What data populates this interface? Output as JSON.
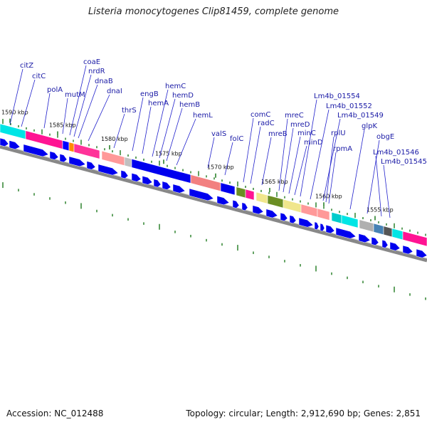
{
  "title": "Listeria monocytogenes Clip81459, complete genome",
  "footer": {
    "accession": "Accession: NC_012488",
    "topology": "Topology: circular; Length: 2,912,690 bp; Genes: 2,851"
  },
  "colors": {
    "backbone": "#888888",
    "cds_arrow": "#0000ee",
    "tick_green": "#1e7a1e",
    "label": "#1a1aa6",
    "leader": "#2222cc"
  },
  "kbp_markers": [
    "1590 kbp",
    "1585 kbp",
    "1580 kbp",
    "1575 kbp",
    "1570 kbp",
    "1565 kbp",
    "1560 kbp",
    "1555 kbp"
  ],
  "gene_labels": [
    "citZ",
    "citC",
    "polA",
    "mutM",
    "coaE",
    "nrdR",
    "dnaB",
    "dnaI",
    "thrS",
    "engB",
    "hemA",
    "hemC",
    "hemD",
    "hemB",
    "hemL",
    "valS",
    "folC",
    "comC",
    "radC",
    "mreB",
    "mreC",
    "mreD",
    "minC",
    "minD",
    "Lm4b_01554",
    "Lm4b_01552",
    "Lm4b_01549",
    "rplU",
    "rpmA",
    "glpK",
    "obgE",
    "Lm4b_01546",
    "Lm4b_01545"
  ]
}
